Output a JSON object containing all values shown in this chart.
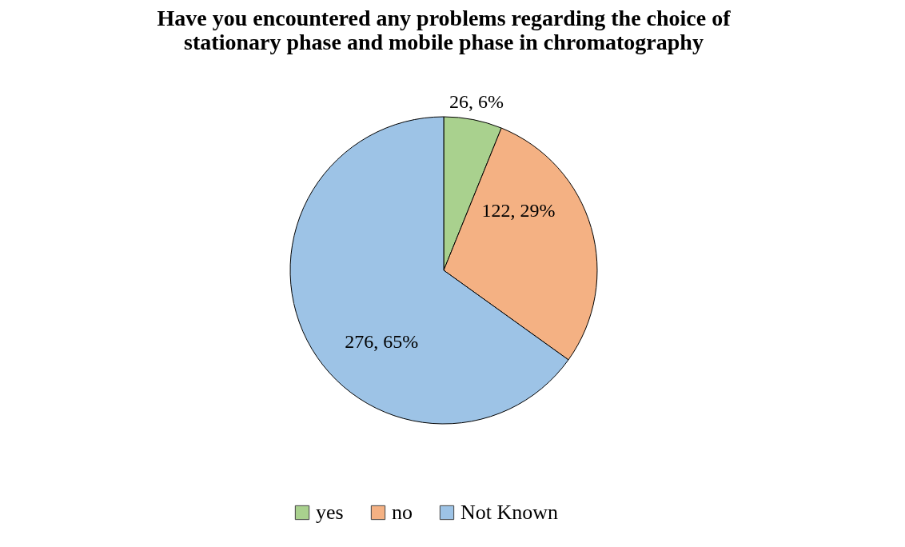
{
  "chart_data": {
    "type": "pie",
    "title": "Have you encountered any problems regarding the choice of stationary phase and mobile phase in chromatography",
    "categories": [
      "yes",
      "no",
      "Not Known"
    ],
    "values": [
      26,
      122,
      276
    ],
    "colors": [
      "#a9d18e",
      "#f4b183",
      "#9dc3e6"
    ],
    "value_labels": [
      "26, 6%",
      "122, 29%",
      "276, 65%"
    ],
    "legend": "bottom"
  }
}
